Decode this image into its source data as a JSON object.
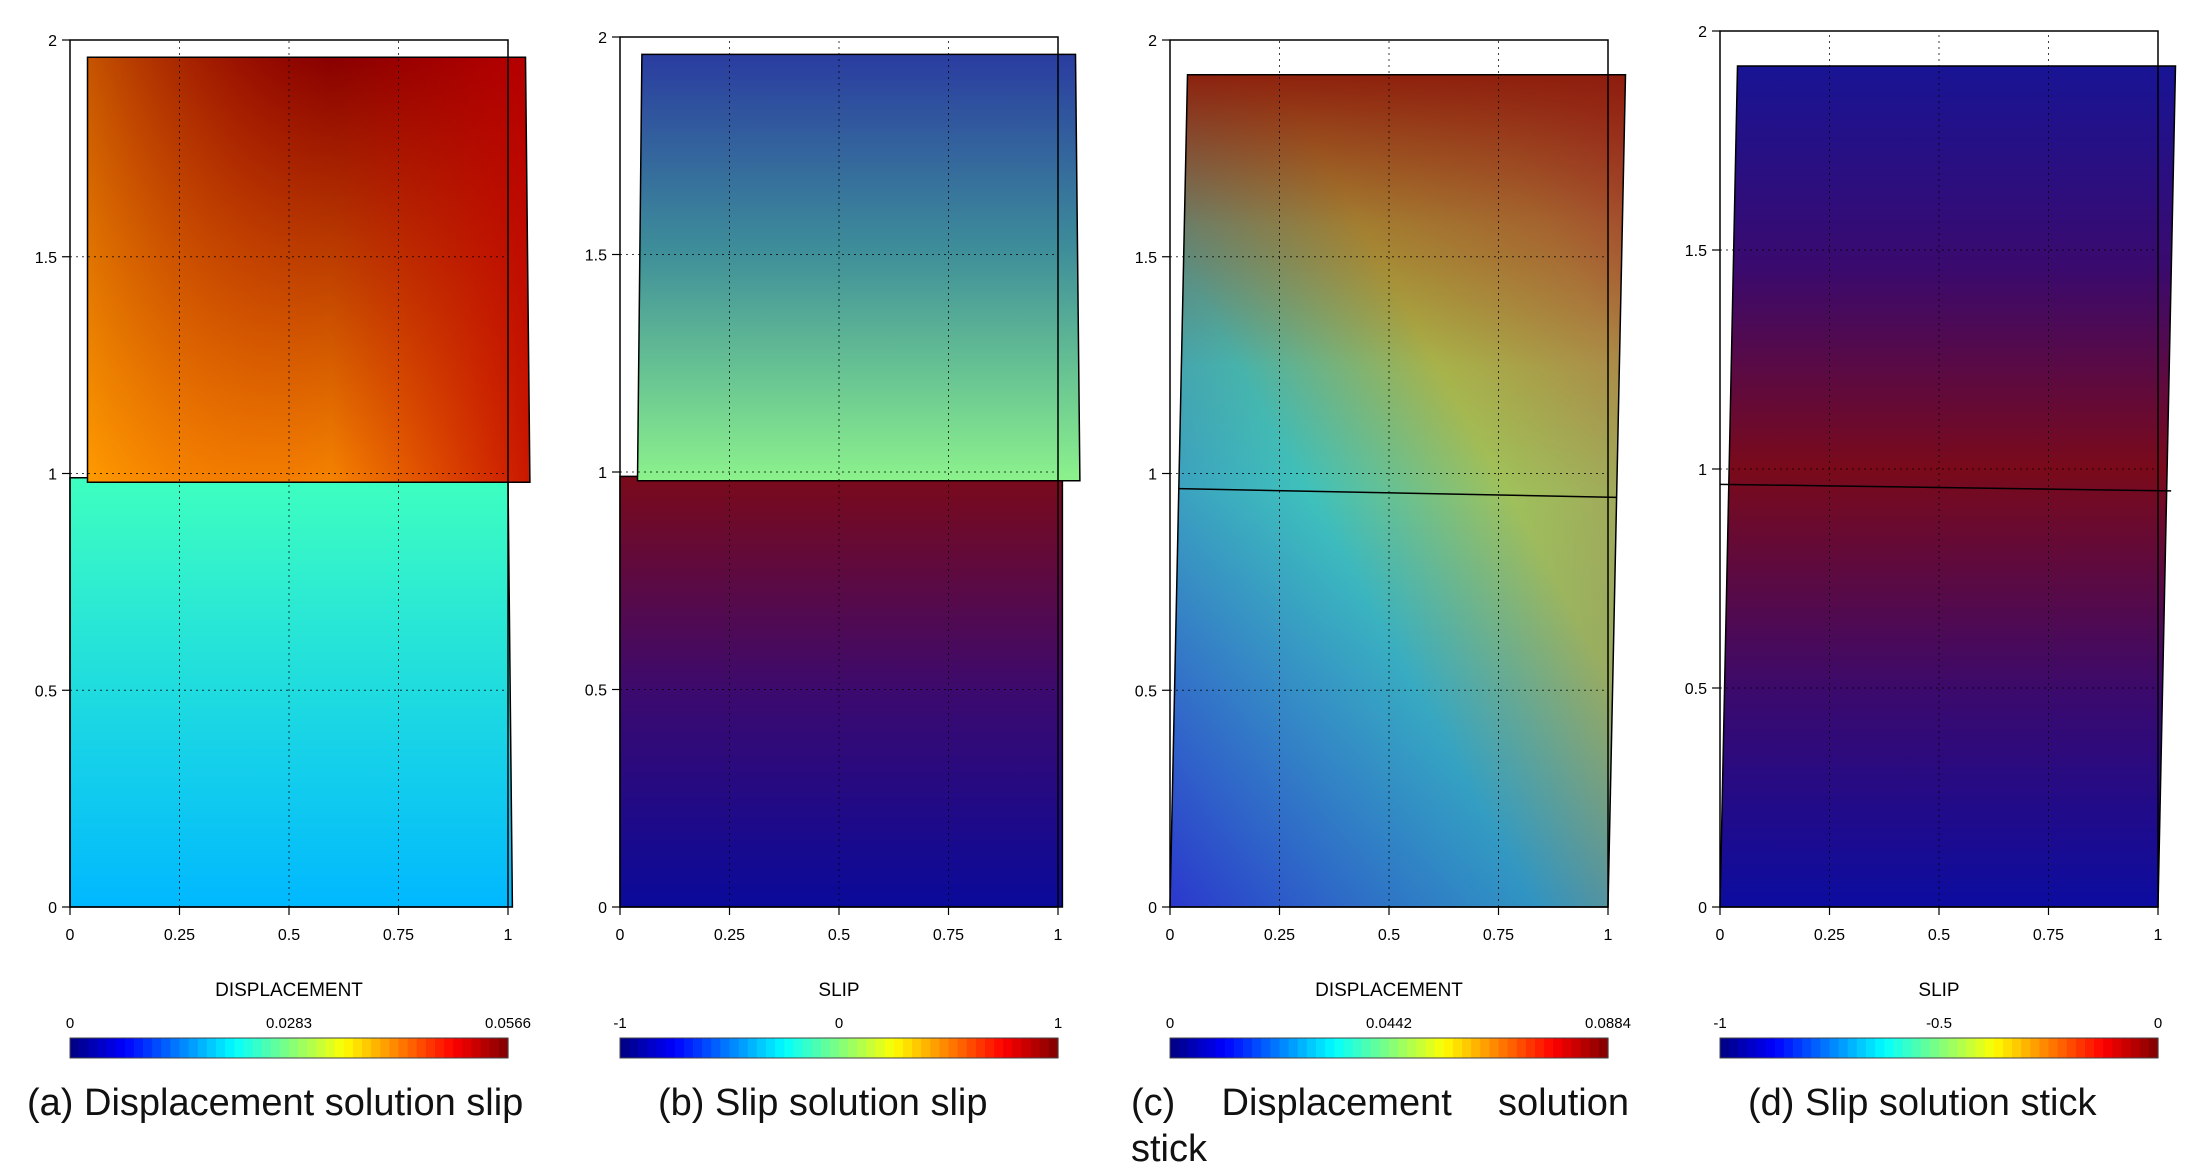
{
  "figure": {
    "panels": [
      {
        "caption": "(a) Displacement solution slip",
        "colorbar_label": "DISPLACEMENT",
        "colorbar_ticks": [
          "0",
          "0.0283",
          "0.0566"
        ]
      },
      {
        "caption": "(b) Slip solution slip",
        "colorbar_label": "SLIP",
        "colorbar_ticks": [
          "-1",
          "0",
          "1"
        ]
      },
      {
        "caption": "(c) Displacement solution stick",
        "colorbar_label": "DISPLACEMENT",
        "colorbar_ticks": [
          "0",
          "0.0442",
          "0.0884"
        ]
      },
      {
        "caption": "(d) Slip solution stick",
        "colorbar_label": "SLIP",
        "colorbar_ticks": [
          "-1",
          "-0.5",
          "0"
        ]
      }
    ]
  },
  "chart_data": [
    {
      "type": "heatmap",
      "title": "",
      "xlabel": "",
      "ylabel": "",
      "xlim": [
        0,
        1
      ],
      "ylim": [
        0,
        2
      ],
      "x_ticks": [
        "0",
        "0.25",
        "0.5",
        "0.75",
        "1"
      ],
      "y_ticks": [
        "0",
        "0.5",
        "1",
        "1.5",
        "2"
      ],
      "grid": "dotted",
      "colormap": "jet",
      "colorbar": {
        "label": "DISPLACEMENT",
        "range": [
          0,
          0.0566
        ],
        "ticks": [
          "0",
          "0.0283",
          "0.0566"
        ]
      },
      "domains": [
        {
          "name": "lower block",
          "corners": [
            [
              0,
              0
            ],
            [
              1.01,
              0
            ],
            [
              1.0,
              0.99
            ],
            [
              0,
              0.99
            ]
          ],
          "value_bottom": 0.0173,
          "value_top": 0.0247
        },
        {
          "name": "upper block",
          "corners": [
            [
              0.04,
              0.98
            ],
            [
              1.05,
              0.98
            ],
            [
              1.04,
              1.96
            ],
            [
              0.04,
              1.96
            ]
          ],
          "value_bottom_left": 0.041,
          "value_bottom_right": 0.053,
          "value_top": 0.0566
        }
      ]
    },
    {
      "type": "heatmap",
      "title": "",
      "xlabel": "",
      "ylabel": "",
      "xlim": [
        0,
        1
      ],
      "ylim": [
        0,
        2
      ],
      "x_ticks": [
        "0",
        "0.25",
        "0.5",
        "0.75",
        "1"
      ],
      "y_ticks": [
        "0",
        "0.5",
        "1",
        "1.5",
        "2"
      ],
      "grid": "dotted",
      "colormap": "jet",
      "colorbar": {
        "label": "SLIP",
        "range": [
          -1,
          1
        ],
        "ticks": [
          "-1",
          "0",
          "1"
        ]
      },
      "domains": [
        {
          "name": "lower block",
          "corners": [
            [
              0,
              0
            ],
            [
              1.01,
              0
            ],
            [
              1.01,
              0.99
            ],
            [
              0,
              0.99
            ]
          ],
          "value_bottom": -0.65,
          "value_top": 1.0
        },
        {
          "name": "upper block",
          "corners": [
            [
              0.04,
              0.98
            ],
            [
              1.05,
              0.98
            ],
            [
              1.04,
              1.96
            ],
            [
              0.05,
              1.96
            ]
          ],
          "value_bottom": 0.05,
          "value_top": -0.65
        }
      ]
    },
    {
      "type": "heatmap",
      "title": "",
      "xlabel": "",
      "ylabel": "",
      "xlim": [
        0,
        1
      ],
      "ylim": [
        0,
        2
      ],
      "x_ticks": [
        "0",
        "0.25",
        "0.5",
        "0.75",
        "1"
      ],
      "y_ticks": [
        "0",
        "0.5",
        "1",
        "1.5",
        "2"
      ],
      "grid": "dotted",
      "colormap": "jet",
      "colorbar": {
        "label": "DISPLACEMENT",
        "range": [
          0,
          0.0884
        ],
        "ticks": [
          "0",
          "0.0442",
          "0.0884"
        ]
      },
      "domains": [
        {
          "name": "body",
          "corners": [
            [
              0,
              0
            ],
            [
              1.0,
              0
            ],
            [
              1.04,
              1.92
            ],
            [
              0.04,
              1.92
            ]
          ],
          "value_bottom_left": 0.012,
          "value_center_left": 0.032,
          "value_right": 0.058,
          "value_top": 0.0884
        }
      ],
      "interface_line": [
        [
          0.02,
          0.965
        ],
        [
          1.02,
          0.945
        ]
      ]
    },
    {
      "type": "heatmap",
      "title": "",
      "xlabel": "",
      "ylabel": "",
      "xlim": [
        0,
        1
      ],
      "ylim": [
        0,
        2
      ],
      "x_ticks": [
        "0",
        "0.25",
        "0.5",
        "0.75",
        "1"
      ],
      "y_ticks": [
        "0",
        "0.5",
        "1",
        "1.5",
        "2"
      ],
      "grid": "dotted",
      "colormap": "jet",
      "colorbar": {
        "label": "SLIP",
        "range": [
          -1,
          0
        ],
        "ticks": [
          "-1",
          "-0.5",
          "0"
        ]
      },
      "domains": [
        {
          "name": "body",
          "corners": [
            [
              0,
              0
            ],
            [
              1.0,
              0
            ],
            [
              1.04,
              1.92
            ],
            [
              0.04,
              1.92
            ]
          ],
          "value_bottom": -0.86,
          "value_interface": -0.02,
          "value_top": -0.88
        }
      ],
      "interface_line": [
        [
          0.0,
          0.965
        ],
        [
          1.03,
          0.95
        ]
      ]
    }
  ]
}
